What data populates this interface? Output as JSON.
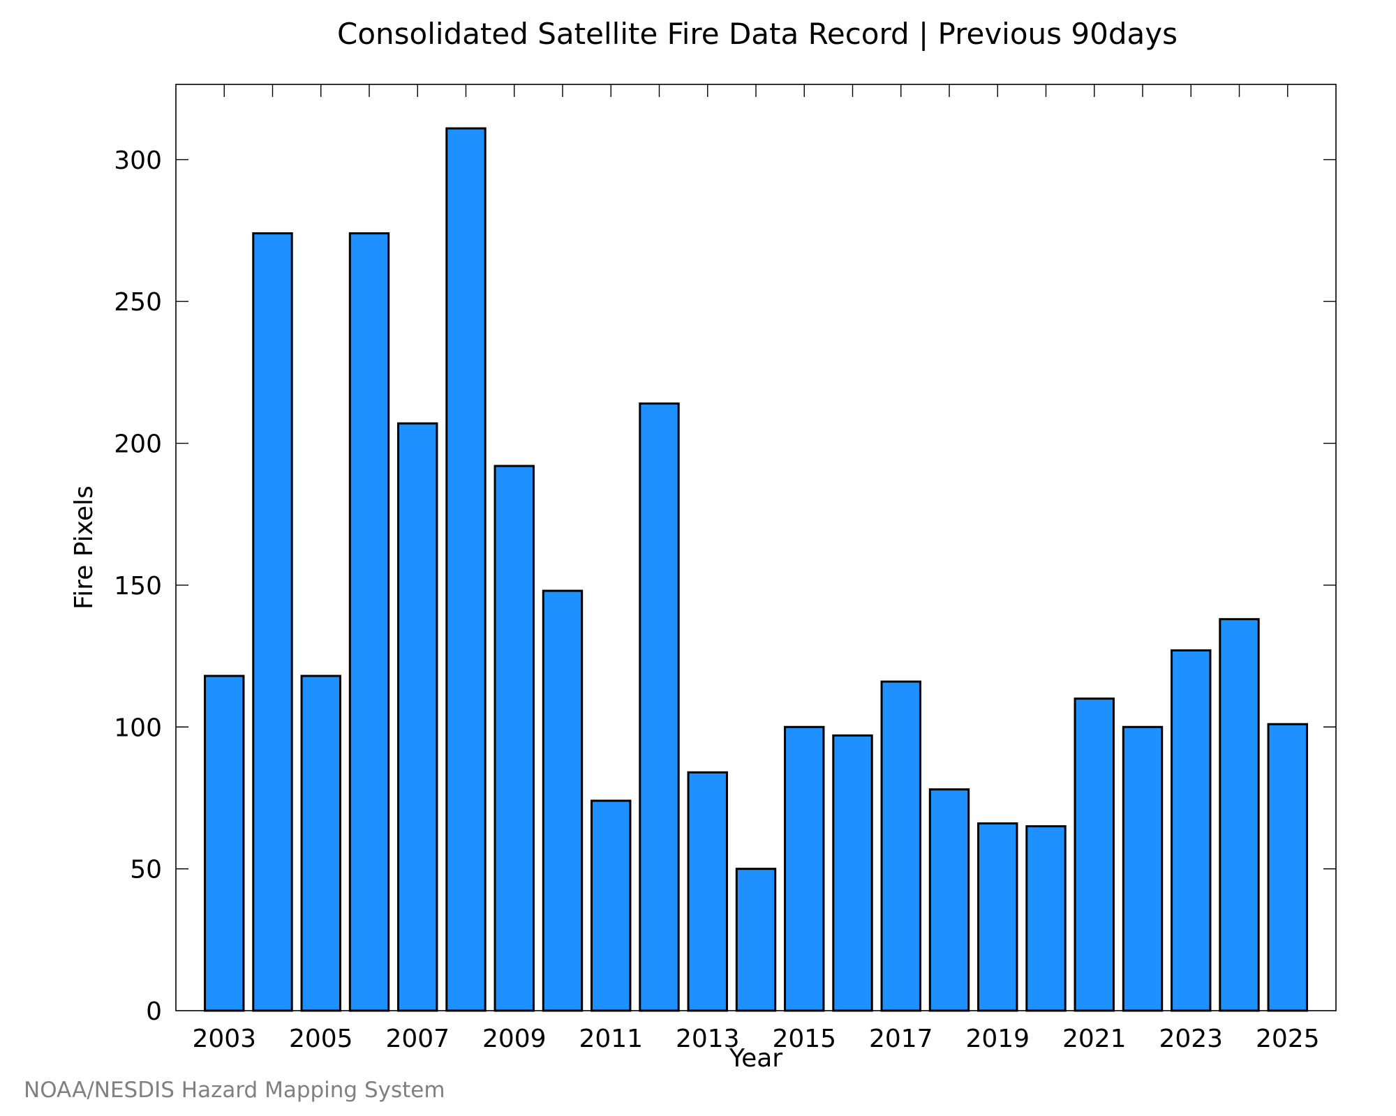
{
  "credit": "NOAA/NESDIS Hazard Mapping System",
  "chart_data": {
    "type": "bar",
    "title": "Consolidated Satellite Fire Data Record | Previous 90days",
    "xlabel": "Year",
    "ylabel": "Fire Pixels",
    "categories": [
      2003,
      2004,
      2005,
      2006,
      2007,
      2008,
      2009,
      2010,
      2011,
      2012,
      2013,
      2014,
      2015,
      2016,
      2017,
      2018,
      2019,
      2020,
      2021,
      2022,
      2023,
      2024,
      2025
    ],
    "values": [
      118,
      274,
      118,
      274,
      207,
      311,
      192,
      148,
      74,
      214,
      84,
      50,
      100,
      97,
      116,
      78,
      66,
      65,
      110,
      100,
      127,
      138,
      101
    ],
    "xticks": [
      "2003",
      "2005",
      "2007",
      "2009",
      "2011",
      "2013",
      "2015",
      "2017",
      "2019",
      "2021",
      "2023",
      "2025"
    ],
    "yticks": [
      0,
      50,
      100,
      150,
      200,
      250,
      300
    ],
    "xlim": [
      2002,
      2026
    ],
    "ylim": [
      0,
      326.5
    ],
    "bar_color": "#1e90ff",
    "grid": false,
    "legend": "none"
  }
}
